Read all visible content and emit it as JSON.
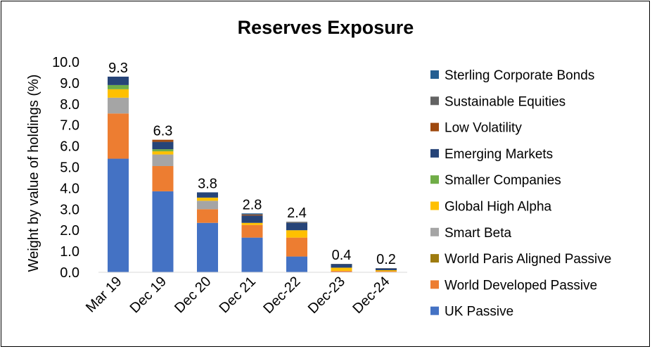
{
  "chart_data": {
    "type": "bar",
    "stacked": true,
    "title": "Reserves Exposure",
    "xlabel": "",
    "ylabel": "Weight by value of holdings (%)",
    "ylim": [
      0,
      10
    ],
    "yticks": [
      "0.0",
      "1.0",
      "2.0",
      "3.0",
      "4.0",
      "5.0",
      "6.0",
      "7.0",
      "8.0",
      "9.0",
      "10.0"
    ],
    "categories": [
      "Mar 19",
      "Dec 19",
      "Dec 20",
      "Dec 21",
      "Dec-22",
      "Dec-23",
      "Dec-24"
    ],
    "totals": [
      "9.3",
      "6.3",
      "3.8",
      "2.8",
      "2.4",
      "0.4",
      "0.2"
    ],
    "grid": false,
    "legend_position": "right",
    "series": [
      {
        "name": "UK Passive",
        "color": "#4472C4",
        "values": [
          5.4,
          3.85,
          2.35,
          1.65,
          0.75,
          0.02,
          0.02
        ]
      },
      {
        "name": "World Developed Passive",
        "color": "#ED7D31",
        "values": [
          2.15,
          1.2,
          0.65,
          0.6,
          0.9,
          0.05,
          0.03
        ]
      },
      {
        "name": "World Paris Aligned Passive",
        "color": "#9E7B0F",
        "values": [
          0,
          0,
          0,
          0,
          0,
          0,
          0
        ]
      },
      {
        "name": "Smart Beta",
        "color": "#A5A5A5",
        "values": [
          0.75,
          0.55,
          0.4,
          0,
          0,
          0,
          0
        ]
      },
      {
        "name": "Global High Alpha",
        "color": "#FFC000",
        "values": [
          0.4,
          0.15,
          0.15,
          0.1,
          0.35,
          0.15,
          0.05
        ]
      },
      {
        "name": "Smaller Companies",
        "color": "#70AD47",
        "values": [
          0.2,
          0.1,
          0,
          0,
          0,
          0,
          0
        ]
      },
      {
        "name": "Emerging Markets",
        "color": "#264478",
        "values": [
          0.4,
          0.35,
          0.25,
          0.35,
          0.35,
          0.17,
          0.08
        ]
      },
      {
        "name": "Low Volatility",
        "color": "#9E480E",
        "values": [
          0,
          0.1,
          0,
          0.05,
          0,
          0,
          0
        ]
      },
      {
        "name": "Sustainable Equities",
        "color": "#636363",
        "values": [
          0,
          0,
          0,
          0,
          0.05,
          0.01,
          0.02
        ]
      },
      {
        "name": "Sterling Corporate Bonds",
        "color": "#255E91",
        "values": [
          0,
          0,
          0,
          0.05,
          0,
          0,
          0
        ]
      }
    ]
  }
}
